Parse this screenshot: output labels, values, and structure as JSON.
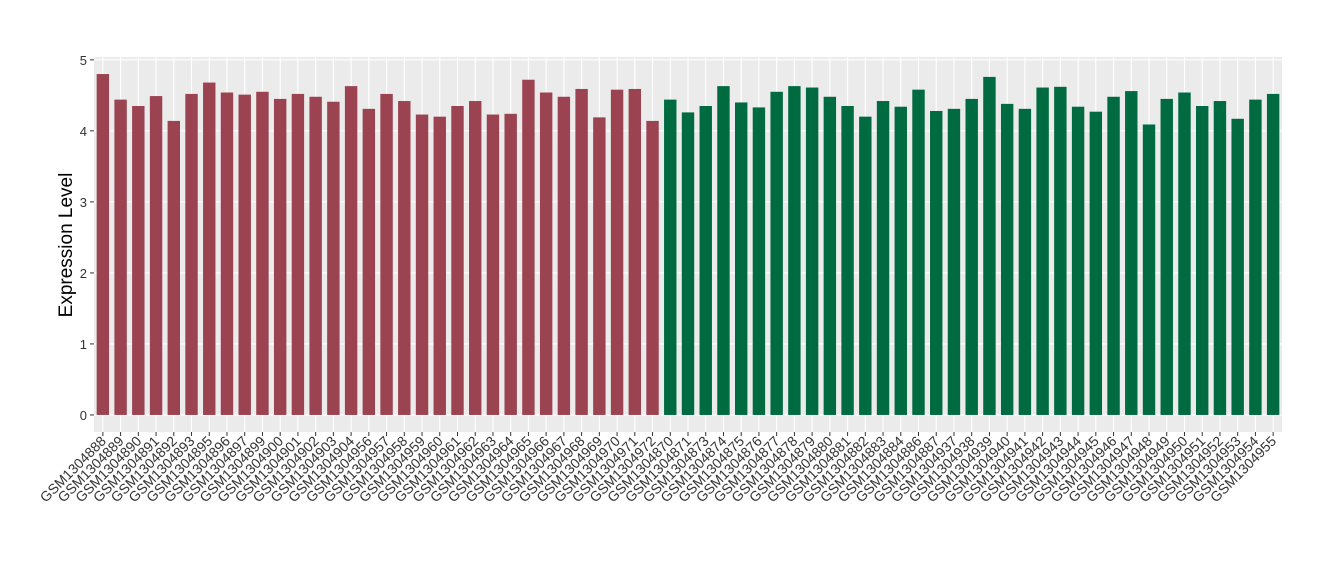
{
  "chart_data": {
    "type": "bar",
    "y_label": "Expression Level",
    "categories": [
      "GSM1304888",
      "GSM1304889",
      "GSM1304890",
      "GSM1304891",
      "GSM1304892",
      "GSM1304893",
      "GSM1304895",
      "GSM1304896",
      "GSM1304897",
      "GSM1304899",
      "GSM1304900",
      "GSM1304901",
      "GSM1304902",
      "GSM1304903",
      "GSM1304904",
      "GSM1304956",
      "GSM1304957",
      "GSM1304958",
      "GSM1304959",
      "GSM1304960",
      "GSM1304961",
      "GSM1304962",
      "GSM1304963",
      "GSM1304964",
      "GSM1304965",
      "GSM1304966",
      "GSM1304967",
      "GSM1304968",
      "GSM1304969",
      "GSM1304970",
      "GSM1304971",
      "GSM1304972",
      "GSM1304870",
      "GSM1304871",
      "GSM1304873",
      "GSM1304874",
      "GSM1304875",
      "GSM1304876",
      "GSM1304877",
      "GSM1304878",
      "GSM1304879",
      "GSM1304880",
      "GSM1304881",
      "GSM1304882",
      "GSM1304883",
      "GSM1304884",
      "GSM1304886",
      "GSM1304887",
      "GSM1304937",
      "GSM1304938",
      "GSM1304939",
      "GSM1304940",
      "GSM1304941",
      "GSM1304942",
      "GSM1304943",
      "GSM1304944",
      "GSM1304945",
      "GSM1304946",
      "GSM1304947",
      "GSM1304948",
      "GSM1304949",
      "GSM1304950",
      "GSM1304951",
      "GSM1304952",
      "GSM1304953",
      "GSM1304954",
      "GSM1304955"
    ],
    "series": [
      {
        "color": "#9b4350",
        "values": [
          4.8,
          4.44,
          4.35,
          4.49,
          4.14,
          4.52,
          4.68,
          4.54,
          4.51,
          4.55,
          4.45,
          4.52,
          4.48,
          4.41,
          4.63,
          4.31,
          4.52,
          4.42,
          4.23,
          4.2,
          4.35,
          4.42,
          4.23,
          4.24,
          4.72,
          4.54,
          4.48,
          4.59,
          4.19,
          4.58,
          4.59,
          4.14,
          null,
          null,
          null,
          null,
          null,
          null,
          null,
          null,
          null,
          null,
          null,
          null,
          null,
          null,
          null,
          null,
          null,
          null,
          null,
          null,
          null,
          null,
          null,
          null,
          null,
          null,
          null,
          null,
          null,
          null,
          null,
          null,
          null,
          null,
          null
        ]
      },
      {
        "color": "#006a40",
        "values": [
          null,
          null,
          null,
          null,
          null,
          null,
          null,
          null,
          null,
          null,
          null,
          null,
          null,
          null,
          null,
          null,
          null,
          null,
          null,
          null,
          null,
          null,
          null,
          null,
          null,
          null,
          null,
          null,
          null,
          null,
          null,
          null,
          4.44,
          4.26,
          4.35,
          4.63,
          4.4,
          4.33,
          4.55,
          4.63,
          4.61,
          4.48,
          4.35,
          4.2,
          4.42,
          4.34,
          4.58,
          4.28,
          4.31,
          4.45,
          4.76,
          4.38,
          4.31,
          4.61,
          4.62,
          4.34,
          4.27,
          4.48,
          4.56,
          4.09,
          4.45,
          4.54,
          4.35,
          4.42,
          4.17,
          4.44,
          4.52
        ]
      }
    ],
    "ylim": [
      -0.24,
      5.04
    ],
    "yticks": [
      0,
      1,
      2,
      3,
      4,
      5
    ],
    "grid": true,
    "panel_color": "#ebebeb"
  }
}
